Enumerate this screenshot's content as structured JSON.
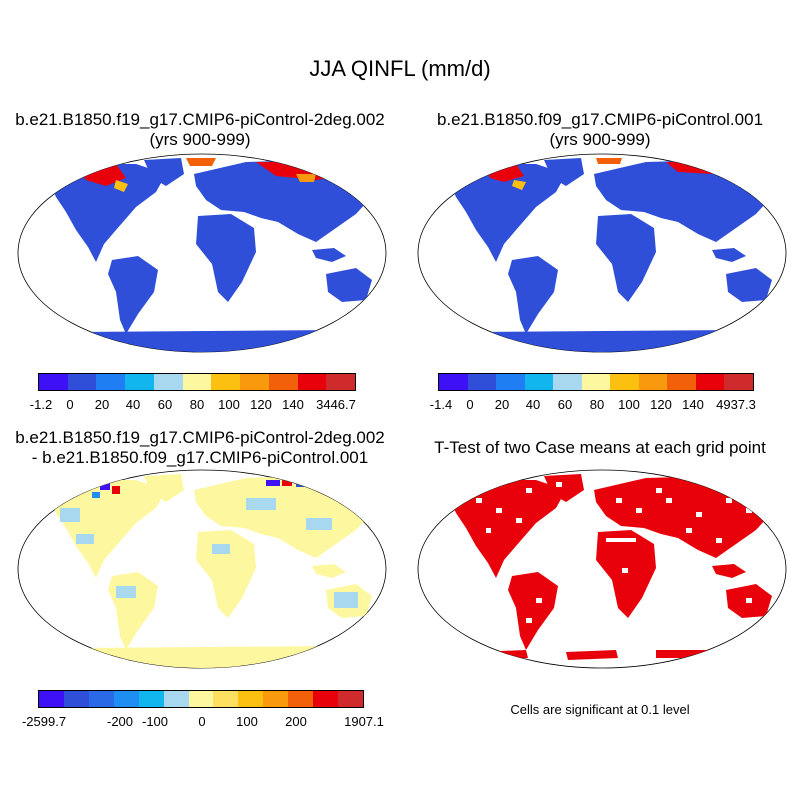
{
  "title": "JJA QINFL (mm/d)",
  "panels": [
    {
      "id": "case1",
      "title_line1": "b.e21.B1850.f19_g17.CMIP6-piControl-2deg.002",
      "title_line2": "(yrs 900-999)",
      "colorbar": {
        "colors": [
          "#3d10f5",
          "#2f4fd9",
          "#1e7ef2",
          "#12b6ef",
          "#a8d8ef",
          "#fdf7a0",
          "#fbc010",
          "#f99a0e",
          "#f26109",
          "#e8010b",
          "#cf2b2d"
        ],
        "labels": [
          "-1.2",
          "0",
          "20",
          "40",
          "60",
          "80",
          "100",
          "120",
          "140",
          "3446.7"
        ]
      }
    },
    {
      "id": "case2",
      "title_line1": "b.e21.B1850.f09_g17.CMIP6-piControl.001",
      "title_line2": "(yrs 900-999)",
      "colorbar": {
        "colors": [
          "#3d10f5",
          "#2f4fd9",
          "#1e7ef2",
          "#12b6ef",
          "#a8d8ef",
          "#fdf7a0",
          "#fbc010",
          "#f99a0e",
          "#f26109",
          "#e8010b",
          "#cf2b2d"
        ],
        "labels": [
          "-1.4",
          "0",
          "20",
          "40",
          "60",
          "80",
          "100",
          "120",
          "140",
          "4937.3"
        ]
      }
    },
    {
      "id": "diff",
      "title_line1": "b.e21.B1850.f19_g17.CMIP6-piControl-2deg.002",
      "title_line2": "- b.e21.B1850.f09_g17.CMIP6-piControl.001",
      "colorbar": {
        "colors": [
          "#3d10f5",
          "#2f4fd9",
          "#2a6ae6",
          "#1e8ef2",
          "#12b6ef",
          "#a8d8ef",
          "#fdf7a0",
          "#fde060",
          "#fbc010",
          "#f99a0e",
          "#f26109",
          "#e8010b",
          "#cf2b2d"
        ],
        "labels": [
          "-2599.7",
          "-200",
          "-100",
          "0",
          "100",
          "200",
          "1907.1"
        ]
      }
    },
    {
      "id": "ttest",
      "title_line1": "T-Test of two Case means at each grid point",
      "title_line2": "",
      "note": "Cells are significant at 0.1 level"
    }
  ],
  "colors": {
    "ocean": "#ffffff",
    "land_case": "#2f4fd9",
    "arctic_case": "#e8010b",
    "land_diff": "#fdf7a0",
    "diff_blue": "#a8d8ef",
    "ttest_land": "#e8010b",
    "coast": "#000000"
  }
}
